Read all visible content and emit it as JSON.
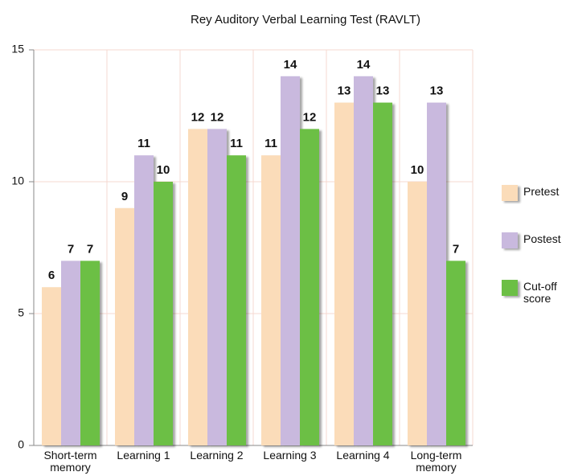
{
  "chart_data": {
    "type": "bar",
    "title": "Rey Auditory Verbal Learning Test (RAVLT)",
    "categories": [
      "Short-term memory",
      "Learning 1",
      "Learning 2",
      "Learning 3",
      "Learning 4",
      "Long-term memory"
    ],
    "series": [
      {
        "name": "Pretest",
        "color": "#fbdcb9",
        "values": [
          6,
          9,
          12,
          11,
          13,
          10
        ]
      },
      {
        "name": "Postest",
        "color": "#c9b9de",
        "values": [
          7,
          11,
          12,
          14,
          14,
          13
        ]
      },
      {
        "name": "Cut-off score",
        "color": "#6cbf45",
        "values": [
          7,
          10,
          11,
          12,
          13,
          7
        ]
      }
    ],
    "ylim": [
      0,
      15
    ],
    "yticks": [
      0,
      5,
      10,
      15
    ],
    "grid": true,
    "legend": "right"
  }
}
